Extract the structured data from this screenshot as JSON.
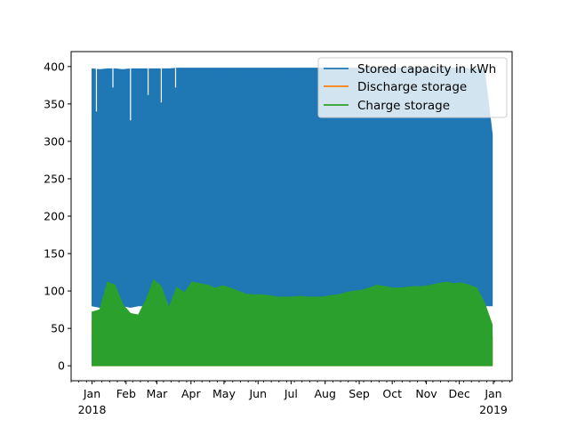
{
  "chart_data": {
    "type": "line",
    "title": "",
    "xlabel": "",
    "ylabel": "",
    "xlim": [
      "2017-12-13",
      "2019-01-18"
    ],
    "ylim": [
      -20,
      420
    ],
    "grid": false,
    "legend_position": "top-right",
    "yticks": [
      0,
      50,
      100,
      150,
      200,
      250,
      300,
      350,
      400
    ],
    "xticks": [
      {
        "date": "2018-01-01",
        "label": "Jan",
        "sublabel": "2018"
      },
      {
        "date": "2018-02-01",
        "label": "Feb",
        "sublabel": ""
      },
      {
        "date": "2018-03-01",
        "label": "Mar",
        "sublabel": ""
      },
      {
        "date": "2018-04-01",
        "label": "Apr",
        "sublabel": ""
      },
      {
        "date": "2018-05-01",
        "label": "May",
        "sublabel": ""
      },
      {
        "date": "2018-06-01",
        "label": "Jun",
        "sublabel": ""
      },
      {
        "date": "2018-07-01",
        "label": "Jul",
        "sublabel": ""
      },
      {
        "date": "2018-08-01",
        "label": "Aug",
        "sublabel": ""
      },
      {
        "date": "2018-09-01",
        "label": "Sep",
        "sublabel": ""
      },
      {
        "date": "2018-10-01",
        "label": "Oct",
        "sublabel": ""
      },
      {
        "date": "2018-11-01",
        "label": "Nov",
        "sublabel": ""
      },
      {
        "date": "2018-12-01",
        "label": "Dec",
        "sublabel": ""
      },
      {
        "date": "2019-01-01",
        "label": "Jan",
        "sublabel": "2019"
      }
    ],
    "series": [
      {
        "name": "Stored capacity in kWh",
        "color": "#1f77b4",
        "x": [
          "2018-01-01",
          "2018-01-08",
          "2018-01-15",
          "2018-01-22",
          "2018-01-29",
          "2018-02-05",
          "2018-02-12",
          "2018-02-19",
          "2018-02-26",
          "2018-03-05",
          "2018-03-12",
          "2018-03-19",
          "2018-03-26",
          "2018-04-02",
          "2018-04-09",
          "2018-04-16",
          "2018-04-23",
          "2018-04-30",
          "2018-05-07",
          "2018-05-14",
          "2018-05-21",
          "2018-05-28",
          "2018-06-04",
          "2018-06-11",
          "2018-06-18",
          "2018-06-25",
          "2018-07-02",
          "2018-07-09",
          "2018-07-16",
          "2018-07-23",
          "2018-07-30",
          "2018-08-06",
          "2018-08-13",
          "2018-08-20",
          "2018-08-27",
          "2018-09-03",
          "2018-09-10",
          "2018-09-17",
          "2018-09-24",
          "2018-10-01",
          "2018-10-08",
          "2018-10-15",
          "2018-10-22",
          "2018-10-29",
          "2018-11-05",
          "2018-11-12",
          "2018-11-19",
          "2018-11-26",
          "2018-12-03",
          "2018-12-10",
          "2018-12-17",
          "2018-12-24",
          "2018-12-31"
        ],
        "min": [
          80,
          78,
          79,
          80,
          80,
          78,
          80,
          80,
          79,
          79,
          80,
          80,
          79,
          80,
          80,
          80,
          80,
          80,
          80,
          80,
          80,
          80,
          80,
          80,
          80,
          80,
          80,
          80,
          80,
          80,
          80,
          80,
          80,
          80,
          80,
          80,
          80,
          80,
          80,
          80,
          80,
          80,
          80,
          80,
          80,
          80,
          80,
          80,
          80,
          80,
          80,
          80,
          80
        ],
        "max": [
          397,
          396,
          397,
          397,
          396,
          397,
          397,
          397,
          397,
          397,
          397,
          398,
          398,
          398,
          398,
          398,
          398,
          398,
          398,
          398,
          398,
          398,
          398,
          398,
          398,
          398,
          398,
          398,
          398,
          398,
          398,
          398,
          398,
          398,
          398,
          398,
          398,
          398,
          398,
          398,
          398,
          398,
          398,
          398,
          398,
          398,
          398,
          398,
          398,
          397,
          397,
          395,
          310
        ]
      },
      {
        "name": "Discharge storage",
        "color": "#ff7f0e",
        "x": [
          "2018-01-01",
          "2018-01-08",
          "2018-01-15",
          "2018-01-22",
          "2018-01-29",
          "2018-02-05",
          "2018-02-12",
          "2018-02-19",
          "2018-02-26",
          "2018-03-05",
          "2018-03-12",
          "2018-03-19",
          "2018-03-26",
          "2018-04-02",
          "2018-04-09",
          "2018-04-16",
          "2018-04-23",
          "2018-04-30",
          "2018-05-07",
          "2018-05-14",
          "2018-05-21",
          "2018-05-28",
          "2018-06-04",
          "2018-06-11",
          "2018-06-18",
          "2018-06-25",
          "2018-07-02",
          "2018-07-09",
          "2018-07-16",
          "2018-07-23",
          "2018-07-30",
          "2018-08-06",
          "2018-08-13",
          "2018-08-20",
          "2018-08-27",
          "2018-09-03",
          "2018-09-10",
          "2018-09-17",
          "2018-09-24",
          "2018-10-01",
          "2018-10-08",
          "2018-10-15",
          "2018-10-22",
          "2018-10-29",
          "2018-11-05",
          "2018-11-12",
          "2018-11-19",
          "2018-11-26",
          "2018-12-03",
          "2018-12-10",
          "2018-12-17",
          "2018-12-24",
          "2018-12-31"
        ],
        "min": [
          0,
          0,
          0,
          0,
          0,
          0,
          0,
          0,
          0,
          0,
          0,
          0,
          0,
          0,
          0,
          0,
          0,
          0,
          0,
          0,
          0,
          0,
          0,
          0,
          0,
          0,
          0,
          0,
          0,
          0,
          0,
          0,
          0,
          0,
          0,
          0,
          0,
          0,
          0,
          0,
          0,
          0,
          0,
          0,
          0,
          0,
          0,
          0,
          0,
          0,
          0,
          0,
          0
        ],
        "max": [
          60,
          55,
          52,
          58,
          50,
          48,
          50,
          52,
          48,
          50,
          52,
          55,
          50,
          52,
          55,
          55,
          52,
          52,
          50,
          48,
          48,
          48,
          45,
          45,
          45,
          45,
          45,
          45,
          45,
          45,
          45,
          45,
          45,
          45,
          45,
          45,
          45,
          48,
          48,
          48,
          50,
          50,
          50,
          50,
          50,
          50,
          52,
          52,
          50,
          48,
          50,
          52,
          45
        ]
      },
      {
        "name": "Charge storage",
        "color": "#2ca02c",
        "x": [
          "2018-01-01",
          "2018-01-08",
          "2018-01-15",
          "2018-01-22",
          "2018-01-29",
          "2018-02-05",
          "2018-02-12",
          "2018-02-19",
          "2018-02-26",
          "2018-03-05",
          "2018-03-12",
          "2018-03-19",
          "2018-03-26",
          "2018-04-02",
          "2018-04-09",
          "2018-04-16",
          "2018-04-23",
          "2018-04-30",
          "2018-05-07",
          "2018-05-14",
          "2018-05-21",
          "2018-05-28",
          "2018-06-04",
          "2018-06-11",
          "2018-06-18",
          "2018-06-25",
          "2018-07-02",
          "2018-07-09",
          "2018-07-16",
          "2018-07-23",
          "2018-07-30",
          "2018-08-06",
          "2018-08-13",
          "2018-08-20",
          "2018-08-27",
          "2018-09-03",
          "2018-09-10",
          "2018-09-17",
          "2018-09-24",
          "2018-10-01",
          "2018-10-08",
          "2018-10-15",
          "2018-10-22",
          "2018-10-29",
          "2018-11-05",
          "2018-11-12",
          "2018-11-19",
          "2018-11-26",
          "2018-12-03",
          "2018-12-10",
          "2018-12-17",
          "2018-12-24",
          "2018-12-31"
        ],
        "min": [
          0,
          0,
          0,
          0,
          0,
          0,
          0,
          0,
          0,
          0,
          0,
          0,
          0,
          0,
          0,
          0,
          0,
          0,
          0,
          0,
          0,
          0,
          0,
          0,
          0,
          0,
          0,
          0,
          0,
          0,
          0,
          0,
          0,
          0,
          0,
          0,
          0,
          0,
          0,
          0,
          0,
          0,
          0,
          0,
          0,
          0,
          0,
          0,
          0,
          0,
          0,
          0,
          0
        ],
        "max": [
          72,
          75,
          112,
          108,
          82,
          70,
          68,
          88,
          115,
          106,
          78,
          105,
          98,
          112,
          110,
          108,
          104,
          107,
          104,
          100,
          96,
          95,
          95,
          94,
          92,
          92,
          92,
          93,
          92,
          92,
          92,
          94,
          95,
          98,
          100,
          101,
          104,
          108,
          106,
          104,
          104,
          105,
          106,
          106,
          108,
          110,
          112,
          110,
          111,
          108,
          104,
          84,
          55
        ]
      }
    ]
  }
}
